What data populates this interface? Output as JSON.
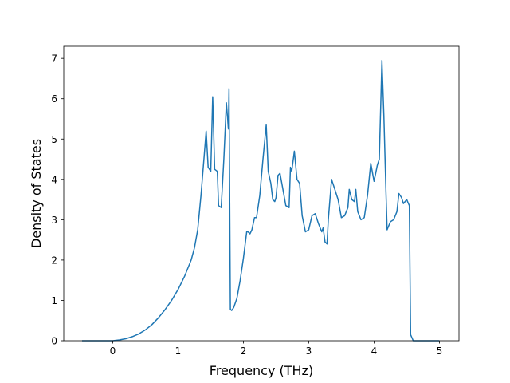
{
  "chart_data": {
    "type": "line",
    "title": "",
    "xlabel": "Frequency (THz)",
    "ylabel": "Density of States",
    "xlim": [
      -0.75,
      5.3
    ],
    "ylim": [
      0,
      7.3
    ],
    "xticks": [
      0,
      1,
      2,
      3,
      4,
      5
    ],
    "yticks": [
      0,
      1,
      2,
      3,
      4,
      5,
      6,
      7
    ],
    "grid": false,
    "series": [
      {
        "color": "#1f77b4",
        "x": [
          -0.47,
          0.0,
          0.1,
          0.2,
          0.3,
          0.4,
          0.5,
          0.6,
          0.7,
          0.8,
          0.9,
          1.0,
          1.1,
          1.2,
          1.25,
          1.3,
          1.35,
          1.4,
          1.43,
          1.46,
          1.5,
          1.53,
          1.56,
          1.6,
          1.62,
          1.66,
          1.7,
          1.74,
          1.77,
          1.78,
          1.8,
          1.82,
          1.85,
          1.9,
          1.95,
          2.0,
          2.05,
          2.07,
          2.1,
          2.13,
          2.17,
          2.2,
          2.25,
          2.3,
          2.35,
          2.38,
          2.42,
          2.45,
          2.48,
          2.5,
          2.53,
          2.56,
          2.6,
          2.65,
          2.7,
          2.72,
          2.74,
          2.78,
          2.82,
          2.86,
          2.9,
          2.95,
          3.0,
          3.05,
          3.1,
          3.15,
          3.2,
          3.22,
          3.25,
          3.28,
          3.3,
          3.35,
          3.4,
          3.45,
          3.5,
          3.55,
          3.6,
          3.62,
          3.66,
          3.7,
          3.72,
          3.75,
          3.8,
          3.85,
          3.9,
          3.95,
          4.0,
          4.05,
          4.08,
          4.12,
          4.15,
          4.18,
          4.2,
          4.25,
          4.3,
          4.35,
          4.38,
          4.42,
          4.45,
          4.5,
          4.54,
          4.56,
          4.6,
          5.0
        ],
        "y": [
          0.0,
          0.0,
          0.02,
          0.05,
          0.1,
          0.17,
          0.27,
          0.4,
          0.57,
          0.77,
          1.0,
          1.27,
          1.6,
          2.0,
          2.3,
          2.75,
          3.6,
          4.6,
          5.2,
          4.3,
          4.2,
          6.05,
          4.25,
          4.2,
          3.35,
          3.3,
          4.5,
          5.9,
          5.25,
          6.25,
          0.78,
          0.75,
          0.82,
          1.05,
          1.5,
          2.05,
          2.7,
          2.7,
          2.65,
          2.75,
          3.05,
          3.05,
          3.6,
          4.5,
          5.35,
          4.2,
          3.9,
          3.5,
          3.45,
          3.55,
          4.1,
          4.15,
          3.8,
          3.35,
          3.3,
          4.3,
          4.2,
          4.7,
          4.0,
          3.9,
          3.1,
          2.7,
          2.75,
          3.1,
          3.15,
          2.9,
          2.7,
          2.8,
          2.45,
          2.4,
          3.0,
          4.0,
          3.75,
          3.5,
          3.05,
          3.1,
          3.3,
          3.75,
          3.5,
          3.45,
          3.75,
          3.2,
          3.0,
          3.05,
          3.6,
          4.4,
          3.95,
          4.35,
          4.5,
          6.95,
          5.6,
          3.8,
          2.75,
          2.95,
          3.0,
          3.2,
          3.65,
          3.55,
          3.4,
          3.5,
          3.35,
          0.15,
          0.0,
          0.0
        ]
      }
    ]
  }
}
